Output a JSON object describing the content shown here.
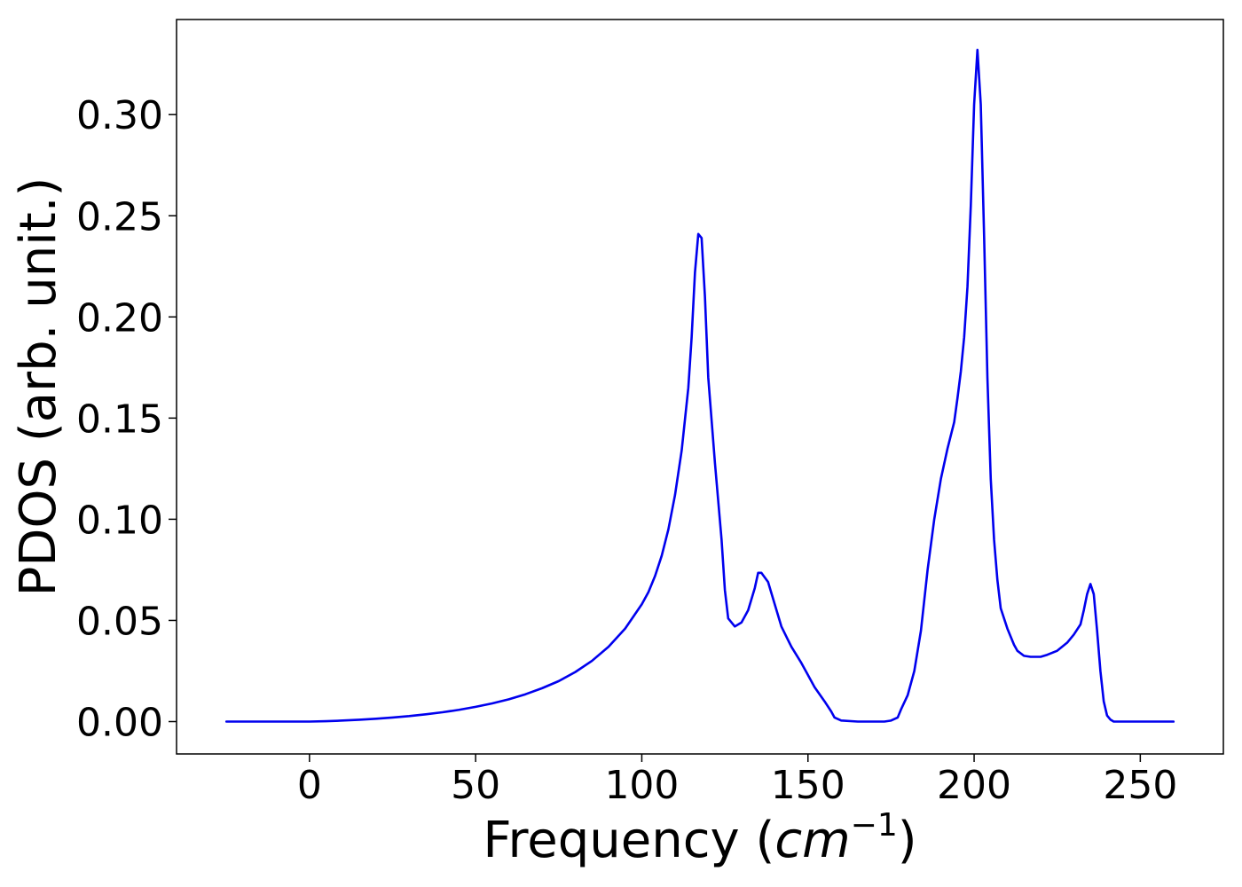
{
  "chart_data": {
    "type": "line",
    "title": "",
    "xlabel": "Frequency",
    "xlabel_unit_base": "cm",
    "xlabel_unit_exp": "−1",
    "ylabel": "PDOS (arb. unit.)",
    "xlim": [
      -40,
      275
    ],
    "ylim": [
      -0.016,
      0.347
    ],
    "xticks": [
      0,
      50,
      100,
      150,
      200,
      250
    ],
    "xtick_labels": [
      "0",
      "50",
      "100",
      "150",
      "200",
      "250"
    ],
    "yticks": [
      0.0,
      0.05,
      0.1,
      0.15,
      0.2,
      0.25,
      0.3
    ],
    "ytick_labels": [
      "0.00",
      "0.05",
      "0.10",
      "0.15",
      "0.20",
      "0.25",
      "0.30"
    ],
    "grid": false,
    "colors": {
      "line": "#0000ee",
      "axes": "#000000"
    },
    "series": [
      {
        "x": [
          -25,
          0,
          5,
          10,
          15,
          20,
          25,
          30,
          35,
          40,
          45,
          50,
          55,
          60,
          65,
          70,
          75,
          80,
          85,
          90,
          95,
          100,
          102,
          104,
          106,
          108,
          110,
          112,
          114,
          115,
          116,
          117,
          118,
          119,
          120,
          122,
          124,
          125,
          126,
          128,
          130,
          132,
          134,
          135,
          136,
          138,
          140,
          142,
          145,
          148,
          150,
          152,
          155,
          157,
          158,
          160,
          165,
          170,
          173,
          175,
          177,
          178,
          180,
          182,
          184,
          186,
          188,
          190,
          192,
          194,
          195,
          196,
          197,
          198,
          199,
          200,
          201,
          202,
          203,
          204,
          205,
          206,
          207,
          208,
          210,
          212,
          213,
          215,
          217,
          220,
          222,
          225,
          228,
          230,
          232,
          233,
          234,
          235,
          236,
          237,
          238,
          239,
          240,
          241,
          242,
          245,
          250,
          260
        ],
        "y": [
          0.0,
          0.0,
          0.0002,
          0.0005,
          0.0009,
          0.0014,
          0.002,
          0.0027,
          0.0036,
          0.0046,
          0.0058,
          0.0073,
          0.009,
          0.011,
          0.0135,
          0.0165,
          0.02,
          0.0245,
          0.03,
          0.037,
          0.046,
          0.058,
          0.064,
          0.072,
          0.082,
          0.095,
          0.112,
          0.134,
          0.165,
          0.19,
          0.222,
          0.241,
          0.239,
          0.21,
          0.17,
          0.128,
          0.09,
          0.065,
          0.051,
          0.047,
          0.049,
          0.055,
          0.066,
          0.0735,
          0.0735,
          0.069,
          0.058,
          0.047,
          0.037,
          0.029,
          0.023,
          0.017,
          0.01,
          0.005,
          0.002,
          0.0005,
          0.0,
          0.0,
          0.0,
          0.0005,
          0.002,
          0.006,
          0.013,
          0.025,
          0.045,
          0.075,
          0.1,
          0.12,
          0.135,
          0.148,
          0.16,
          0.173,
          0.19,
          0.215,
          0.255,
          0.305,
          0.332,
          0.305,
          0.24,
          0.17,
          0.12,
          0.09,
          0.07,
          0.056,
          0.046,
          0.038,
          0.035,
          0.0325,
          0.032,
          0.032,
          0.033,
          0.035,
          0.039,
          0.043,
          0.048,
          0.055,
          0.063,
          0.068,
          0.063,
          0.045,
          0.025,
          0.01,
          0.003,
          0.001,
          0.0,
          0.0,
          0.0,
          0.0
        ]
      }
    ]
  }
}
